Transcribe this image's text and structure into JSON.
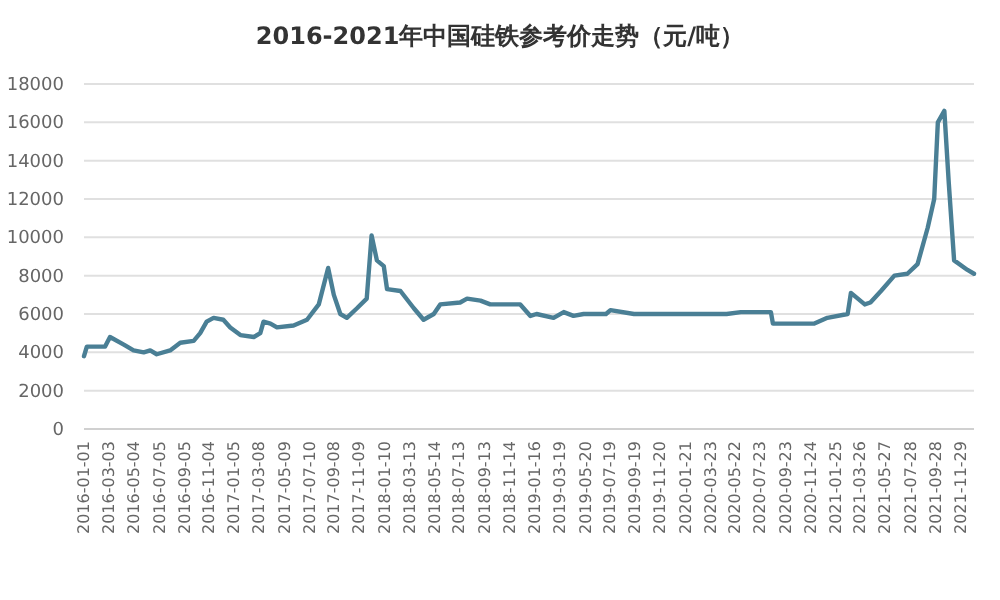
{
  "chart_data": {
    "type": "line",
    "title": "2016-2021年中国硅铁参考价走势（元/吨）",
    "x": [
      "2016-01-01",
      "2016-01-08",
      "2016-02-22",
      "2016-03-05",
      "2016-04-08",
      "2016-05-02",
      "2016-05-27",
      "2016-06-12",
      "2016-06-28",
      "2016-07-31",
      "2016-08-25",
      "2016-09-27",
      "2016-10-13",
      "2016-10-29",
      "2016-11-15",
      "2016-12-09",
      "2016-12-26",
      "2017-01-20",
      "2017-02-22",
      "2017-03-10",
      "2017-03-18",
      "2017-04-04",
      "2017-04-20",
      "2017-05-31",
      "2017-07-03",
      "2017-08-01",
      "2017-08-24",
      "2017-09-07",
      "2017-09-23",
      "2017-10-09",
      "2017-11-03",
      "2017-11-27",
      "2017-12-09",
      "2017-12-22",
      "2018-01-08",
      "2018-01-16",
      "2018-02-18",
      "2018-03-23",
      "2018-04-16",
      "2018-05-11",
      "2018-05-27",
      "2018-07-15",
      "2018-08-01",
      "2018-09-03",
      "2018-09-27",
      "2018-10-22",
      "2018-12-10",
      "2019-01-04",
      "2019-01-19",
      "2019-03-02",
      "2019-03-27",
      "2019-04-20",
      "2019-05-15",
      "2019-07-09",
      "2019-07-20",
      "2019-09-16",
      "2019-11-21",
      "2020-02-27",
      "2020-05-01",
      "2020-06-05",
      "2020-08-18",
      "2020-08-23",
      "2020-12-03",
      "2021-01-04",
      "2021-02-23",
      "2021-03-03",
      "2021-04-06",
      "2021-04-20",
      "2021-05-16",
      "2021-06-18",
      "2021-07-20",
      "2021-08-14",
      "2021-09-08",
      "2021-09-24",
      "2021-10-03",
      "2021-10-19",
      "2021-10-30",
      "2021-11-12",
      "2021-12-15",
      "2021-12-31"
    ],
    "series": [
      {
        "color": "#4a7f95",
        "values": [
          3800,
          4300,
          4300,
          4800,
          4400,
          4100,
          4000,
          4100,
          3900,
          4100,
          4500,
          4600,
          5000,
          5600,
          5800,
          5700,
          5300,
          4900,
          4800,
          5000,
          5600,
          5500,
          5300,
          5400,
          5700,
          6500,
          8400,
          7000,
          6000,
          5800,
          6300,
          6800,
          10100,
          8800,
          8500,
          7300,
          7200,
          6300,
          5700,
          6000,
          6500,
          6600,
          6800,
          6700,
          6500,
          6500,
          6500,
          5900,
          6000,
          5800,
          6100,
          5900,
          6000,
          6000,
          6200,
          6000,
          6000,
          6000,
          6000,
          6100,
          6100,
          5500,
          5500,
          5800,
          6000,
          7100,
          6500,
          6600,
          7200,
          8000,
          8100,
          8600,
          10500,
          12000,
          16000,
          16600,
          12800,
          8800,
          8300,
          8100
        ]
      }
    ],
    "xlim": [
      "2016-01-01",
      "2021-12-31"
    ],
    "xticks": [
      "2016-01-01",
      "2016-03-03",
      "2016-05-04",
      "2016-07-05",
      "2016-09-05",
      "2016-11-04",
      "2017-01-05",
      "2017-03-08",
      "2017-05-09",
      "2017-07-10",
      "2017-09-08",
      "2017-11-09",
      "2018-01-10",
      "2018-03-13",
      "2018-05-14",
      "2018-07-13",
      "2018-09-13",
      "2018-11-14",
      "2019-01-16",
      "2019-03-19",
      "2019-05-20",
      "2019-07-19",
      "2019-09-19",
      "2019-11-20",
      "2020-01-21",
      "2020-03-23",
      "2020-05-22",
      "2020-07-23",
      "2020-09-23",
      "2020-11-24",
      "2021-01-25",
      "2021-03-26",
      "2021-05-27",
      "2021-07-28",
      "2021-09-28",
      "2021-11-29"
    ],
    "ylim": [
      0,
      18000
    ],
    "yticks": [
      0,
      2000,
      4000,
      6000,
      8000,
      10000,
      12000,
      14000,
      16000,
      18000
    ],
    "grid": "y",
    "marker": "none",
    "line_style": "solid"
  }
}
